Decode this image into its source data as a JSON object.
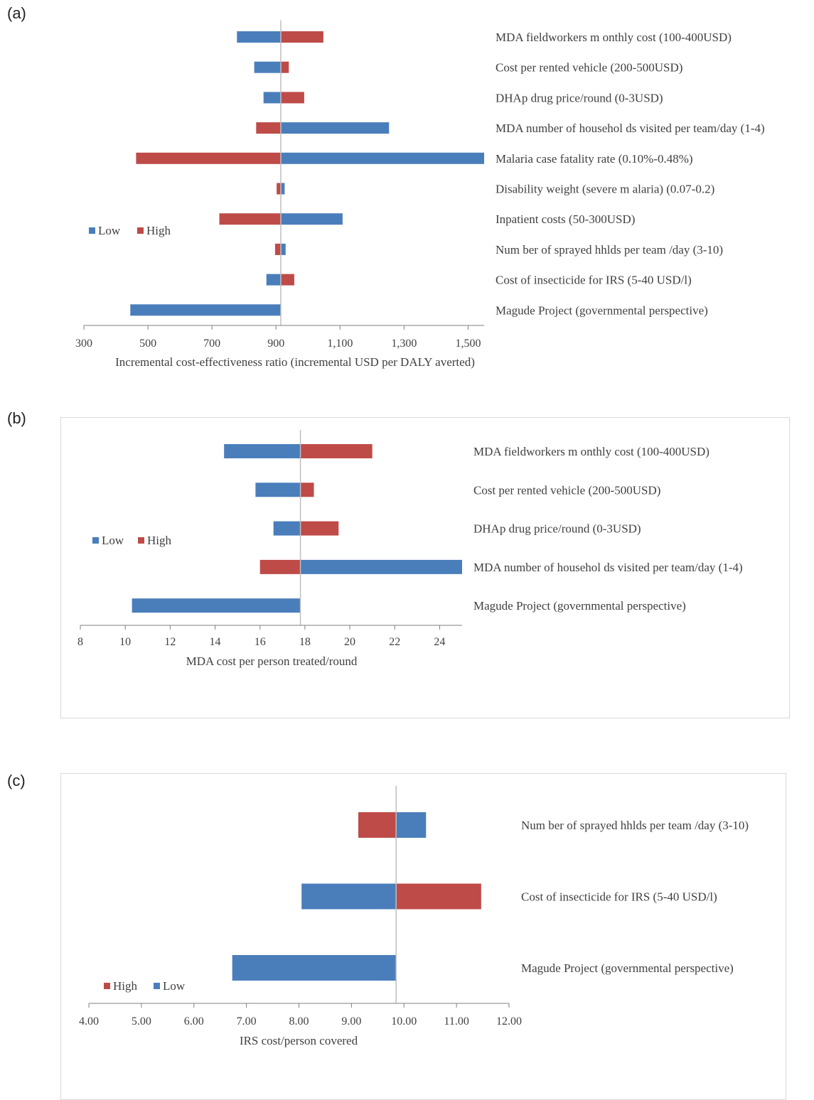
{
  "panels": {
    "a": {
      "label": "(a)"
    },
    "b": {
      "label": "(b)"
    },
    "c": {
      "label": "(c)"
    }
  },
  "colors": {
    "low": "#4a7ebb",
    "high": "#be4b48",
    "axis": "#bfbfbf",
    "frame": "#d9d9d9"
  },
  "chart_data": [
    {
      "type": "bar",
      "orientation": "horizontal",
      "subtype": "tornado",
      "baseline": 915,
      "xlabel": "Incremental cost-effectiveness ratio (incremental USD per DALY averted)",
      "xlim": [
        300,
        1550
      ],
      "xticks": [
        "300",
        "500",
        "700",
        "900",
        "1,100",
        "1,300",
        "1,500"
      ],
      "xtick_values": [
        300,
        500,
        700,
        900,
        1100,
        1300,
        1500
      ],
      "legend": [
        "Low",
        "High"
      ],
      "legend_position": "left",
      "categories": [
        "MDA fieldworkers m onthly cost (100-400USD)",
        "Cost per rented vehicle (200-500USD)",
        "DHAp drug price/round (0-3USD)",
        "MDA number of househol ds visited per team/day (1-4)",
        "Malaria case fatality rate (0.10%-0.48%)",
        "Disability weight (severe m alaria) (0.07-0.2)",
        "Inpatient costs (50-300USD)",
        "Num ber of sprayed hhlds per team /day (3-10)",
        "Cost of insecticide for IRS (5-40 USD/l)",
        "Magude Project (governmental perspective)"
      ],
      "series": [
        {
          "name": "Low",
          "values": [
            778,
            832,
            861,
            1253,
            1555,
            927,
            1108,
            930,
            870,
            445
          ]
        },
        {
          "name": "High",
          "values": [
            1048,
            940,
            988,
            838,
            463,
            902,
            723,
            897,
            957,
            null
          ]
        }
      ]
    },
    {
      "type": "bar",
      "orientation": "horizontal",
      "subtype": "tornado",
      "baseline": 17.8,
      "xlabel": "MDA cost per person treated/round",
      "xlim": [
        8,
        25
      ],
      "xticks": [
        "8",
        "10",
        "12",
        "14",
        "16",
        "18",
        "20",
        "22",
        "24"
      ],
      "xtick_values": [
        8,
        10,
        12,
        14,
        16,
        18,
        20,
        22,
        24
      ],
      "legend": [
        "Low",
        "High"
      ],
      "legend_position": "left",
      "categories": [
        "MDA fieldworkers m onthly cost (100-400USD)",
        "Cost per rented vehicle (200-500USD)",
        "DHAp drug price/round (0-3USD)",
        "MDA number of househol ds visited per team/day (1-4)",
        "Magude Project (governmental perspective)"
      ],
      "series": [
        {
          "name": "Low",
          "values": [
            14.4,
            15.8,
            16.6,
            25.0,
            10.3
          ]
        },
        {
          "name": "High",
          "values": [
            21.0,
            18.4,
            19.5,
            16.0,
            null
          ]
        }
      ]
    },
    {
      "type": "bar",
      "orientation": "horizontal",
      "subtype": "tornado",
      "baseline": 9.85,
      "xlabel": "IRS cost/person covered",
      "xlim": [
        4,
        12
      ],
      "xticks": [
        "4.00",
        "5.00",
        "6.00",
        "7.00",
        "8.00",
        "9.00",
        "10.00",
        "11.00",
        "12.00"
      ],
      "xtick_values": [
        4,
        5,
        6,
        7,
        8,
        9,
        10,
        11,
        12
      ],
      "legend": [
        "High",
        "Low"
      ],
      "legend_position": "bottom-left",
      "categories": [
        "Num ber of sprayed hhlds per team /day (3-10)",
        "Cost of insecticide for IRS (5-40 USD/l)",
        "Magude Project (governmental perspective)"
      ],
      "series": [
        {
          "name": "Low",
          "values": [
            10.42,
            8.05,
            6.73
          ]
        },
        {
          "name": "High",
          "values": [
            9.13,
            11.47,
            null
          ]
        }
      ]
    }
  ]
}
